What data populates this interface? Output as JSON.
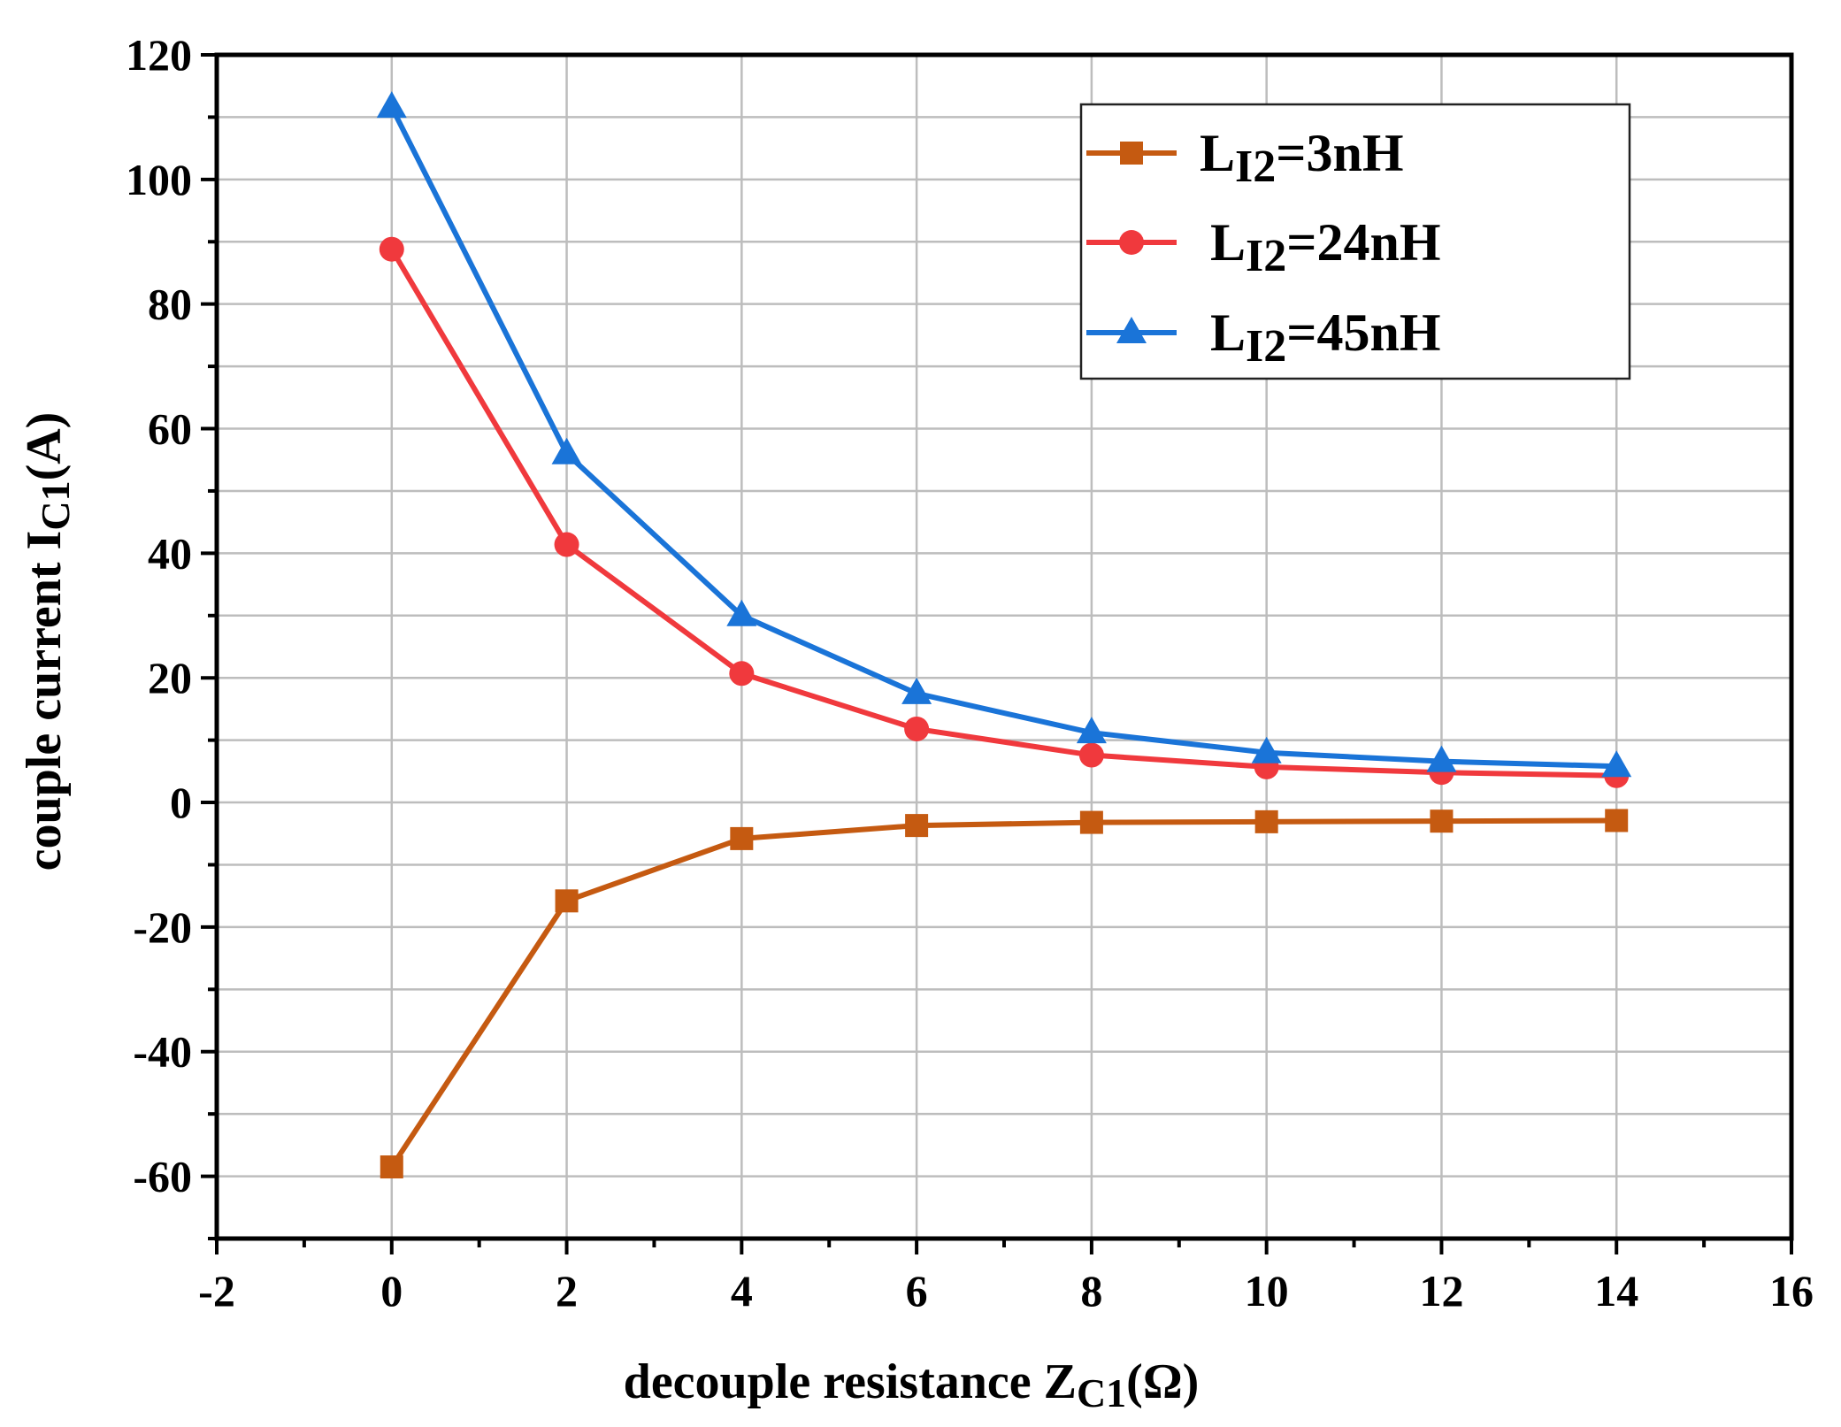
{
  "chart_data": {
    "type": "line",
    "title": "",
    "xlabel": {
      "main": "decouple resistance Z",
      "sub": "C1",
      "suffix": "(Ω)"
    },
    "ylabel": {
      "main": "couple current I",
      "sub": "C1",
      "suffix": "(A)"
    },
    "xlim": [
      -2,
      16
    ],
    "ylim": [
      -70,
      120
    ],
    "xticks": [
      -2,
      0,
      2,
      4,
      6,
      8,
      10,
      12,
      14,
      16
    ],
    "yticks": [
      -60,
      -40,
      -20,
      0,
      20,
      40,
      60,
      80,
      100,
      120
    ],
    "grid": true,
    "legend_position": "top-right",
    "x": [
      0,
      2,
      4,
      6,
      8,
      10,
      12,
      14
    ],
    "series": [
      {
        "name": "L_I2=3nH",
        "label_main": "L",
        "label_sub": "I2",
        "label_suffix": "=3nH",
        "color": "#c55a11",
        "marker": "square",
        "values": [
          -58.5,
          -15.8,
          -5.8,
          -3.7,
          -3.2,
          -3.1,
          -3.0,
          -2.9
        ]
      },
      {
        "name": "L_I2=24nH",
        "label_main": "L",
        "label_sub": "I2",
        "label_suffix": "=24nH",
        "color": "#f0393d",
        "marker": "circle",
        "values": [
          88.8,
          41.4,
          20.7,
          11.8,
          7.6,
          5.7,
          4.8,
          4.3
        ]
      },
      {
        "name": "L_I2=45nH",
        "label_main": "L",
        "label_sub": "I2",
        "label_suffix": "=45nH",
        "color": "#1a74d8",
        "marker": "triangle",
        "values": [
          111.6,
          56.0,
          30.0,
          17.5,
          11.2,
          8.0,
          6.6,
          5.8
        ]
      }
    ]
  }
}
